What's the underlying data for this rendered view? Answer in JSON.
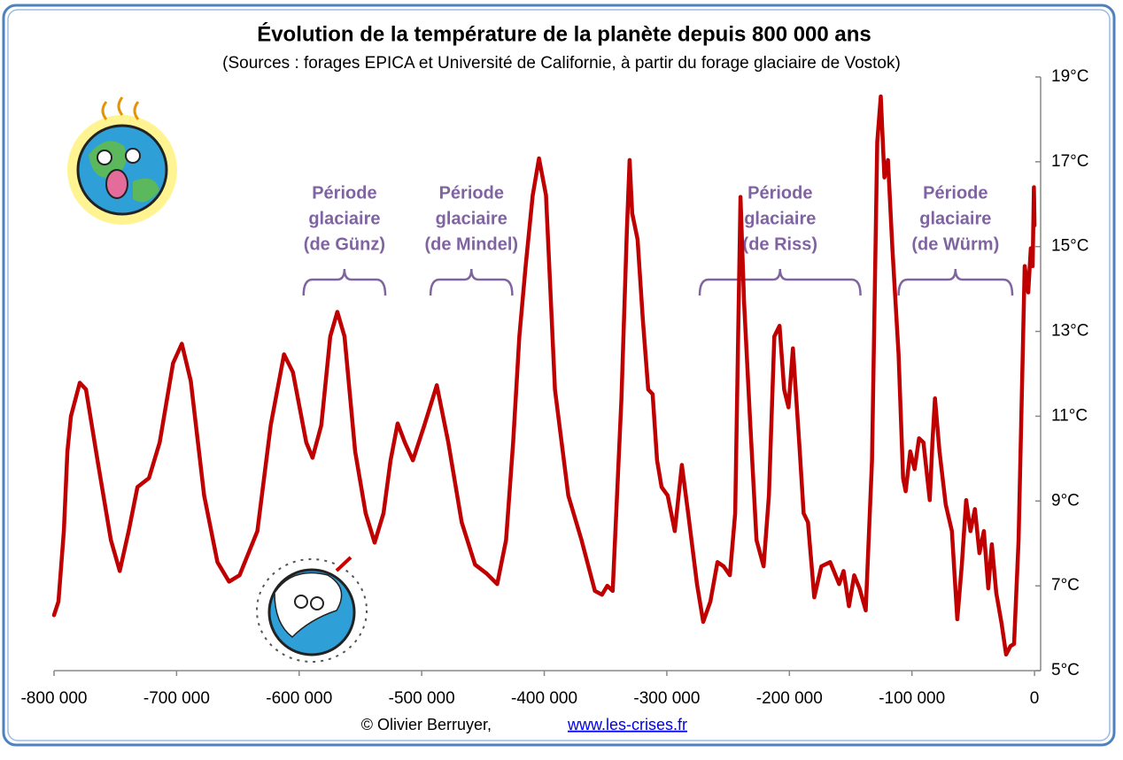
{
  "chart_data": {
    "type": "line",
    "title": "Évolution de la température de la planète depuis 800 000 ans",
    "subtitle": "(Sources : forages EPICA et Université de Californie, à partir du forage glaciaire de Vostok)",
    "x": [
      -800000,
      -796400,
      -792000,
      -789100,
      -786200,
      -779000,
      -773900,
      -764500,
      -753600,
      -746400,
      -739100,
      -731900,
      -722500,
      -713800,
      -702900,
      -695700,
      -688400,
      -677500,
      -666700,
      -657200,
      -648600,
      -634100,
      -623200,
      -612300,
      -605100,
      -594200,
      -589100,
      -581900,
      -574600,
      -568800,
      -563000,
      -554300,
      -545700,
      -538400,
      -531200,
      -525400,
      -519600,
      -513800,
      -507200,
      -497800,
      -487700,
      -478300,
      -467400,
      -456500,
      -447100,
      -438400,
      -431200,
      -425400,
      -420300,
      -415200,
      -409400,
      -404300,
      -398600,
      -391300,
      -380400,
      -369600,
      -358700,
      -352900,
      -348600,
      -344200,
      -337000,
      -332600,
      -330400,
      -328300,
      -323900,
      -319600,
      -315200,
      -311600,
      -308000,
      -304300,
      -299300,
      -293500,
      -287700,
      -282600,
      -275400,
      -270300,
      -264500,
      -258700,
      -253600,
      -248600,
      -244200,
      -239900,
      -237000,
      -231900,
      -226800,
      -221000,
      -216700,
      -212300,
      -208000,
      -204300,
      -200700,
      -197100,
      -192000,
      -188400,
      -184800,
      -179700,
      -173900,
      -166700,
      -159400,
      -155800,
      -151400,
      -147100,
      -142800,
      -137700,
      -132600,
      -128300,
      -125400,
      -122500,
      -119600,
      -116000,
      -110900,
      -107200,
      -105100,
      -101400,
      -97800,
      -94200,
      -90600,
      -85500,
      -83300,
      -81200,
      -77500,
      -72500,
      -67400,
      -63000,
      -59400,
      -55800,
      -52200,
      -48600,
      -44900,
      -41300,
      -37700,
      -34800,
      -31200,
      -26800,
      -23200,
      -19600,
      -16700,
      -13000,
      -10900,
      -8000,
      -5100,
      -3000,
      -1500,
      -500,
      0
    ],
    "series": [
      {
        "color": "#c00000",
        "values": [
          6.31,
          6.63,
          8.29,
          10.17,
          11.0,
          11.79,
          11.63,
          9.96,
          8.08,
          7.35,
          8.29,
          9.33,
          9.54,
          10.38,
          12.25,
          12.71,
          11.83,
          9.13,
          7.56,
          7.1,
          7.25,
          8.29,
          10.79,
          12.46,
          12.04,
          10.38,
          10.02,
          10.79,
          12.88,
          13.46,
          12.88,
          10.17,
          8.71,
          8.02,
          8.71,
          9.96,
          10.83,
          10.38,
          9.96,
          10.79,
          11.73,
          10.38,
          8.5,
          7.5,
          7.29,
          7.04,
          8.08,
          10.38,
          12.88,
          14.54,
          16.21,
          17.08,
          16.21,
          11.63,
          9.13,
          8.08,
          6.88,
          6.79,
          7.0,
          6.88,
          11.42,
          15.38,
          17.04,
          15.79,
          15.17,
          13.29,
          11.63,
          11.52,
          9.96,
          9.33,
          9.13,
          8.29,
          9.85,
          8.71,
          7.04,
          6.15,
          6.63,
          7.56,
          7.46,
          7.25,
          8.71,
          16.17,
          13.71,
          10.79,
          8.08,
          7.46,
          9.13,
          12.88,
          13.13,
          11.63,
          11.21,
          12.6,
          10.38,
          8.71,
          8.5,
          6.73,
          7.46,
          7.56,
          7.04,
          7.35,
          6.52,
          7.25,
          6.94,
          6.42,
          9.96,
          17.46,
          18.54,
          16.63,
          17.04,
          14.96,
          12.46,
          9.54,
          9.23,
          10.17,
          9.75,
          10.48,
          10.38,
          9.02,
          10.38,
          11.42,
          10.17,
          8.92,
          8.29,
          6.21,
          7.46,
          9.02,
          8.29,
          8.81,
          7.77,
          8.29,
          6.94,
          7.98,
          6.83,
          6.1,
          5.38,
          5.58,
          5.63,
          8.08,
          10.79,
          14.54,
          13.92,
          14.96,
          14.54,
          16.4,
          15.5
        ]
      }
    ],
    "xlim": [
      -800000,
      5000
    ],
    "xticks": [
      {
        "value": -800000,
        "label": "-800 000"
      },
      {
        "value": -700000,
        "label": "-700 000"
      },
      {
        "value": -600000,
        "label": "-600 000"
      },
      {
        "value": -500000,
        "label": "-500 000"
      },
      {
        "value": -400000,
        "label": "-400 000"
      },
      {
        "value": -300000,
        "label": "-300 000"
      },
      {
        "value": -200000,
        "label": "-200 000"
      },
      {
        "value": -100000,
        "label": "-100 000"
      },
      0
    ],
    "ylim": [
      5,
      19
    ],
    "yticks": [
      {
        "value": 5,
        "label": "5°C"
      },
      {
        "value": 7,
        "label": "7°C"
      },
      {
        "value": 9,
        "label": "9°C"
      },
      {
        "value": 11,
        "label": "11°C"
      },
      {
        "value": 13,
        "label": "13°C"
      },
      {
        "value": 15,
        "label": "15°C"
      },
      {
        "value": 17,
        "label": "17°C"
      },
      {
        "value": 19,
        "label": "19°C"
      }
    ],
    "annotations": [
      {
        "lines": [
          "Période",
          "glaciaire",
          "(de Günz)"
        ],
        "x_range": [
          -596400,
          -529700
        ]
      },
      {
        "lines": [
          "Période",
          "glaciaire",
          "(de Mindel)"
        ],
        "x_range": [
          -492800,
          -426100
        ]
      },
      {
        "lines": [
          "Période",
          "glaciaire",
          "(de Riss)"
        ],
        "x_range": [
          -273200,
          -142000
        ]
      },
      {
        "lines": [
          "Période",
          "glaciaire",
          "(de Würm)"
        ],
        "x_range": [
          -110900,
          -18100
        ]
      }
    ],
    "credit": "© Olivier Berruyer,",
    "link": "www.les-crises.fr"
  }
}
